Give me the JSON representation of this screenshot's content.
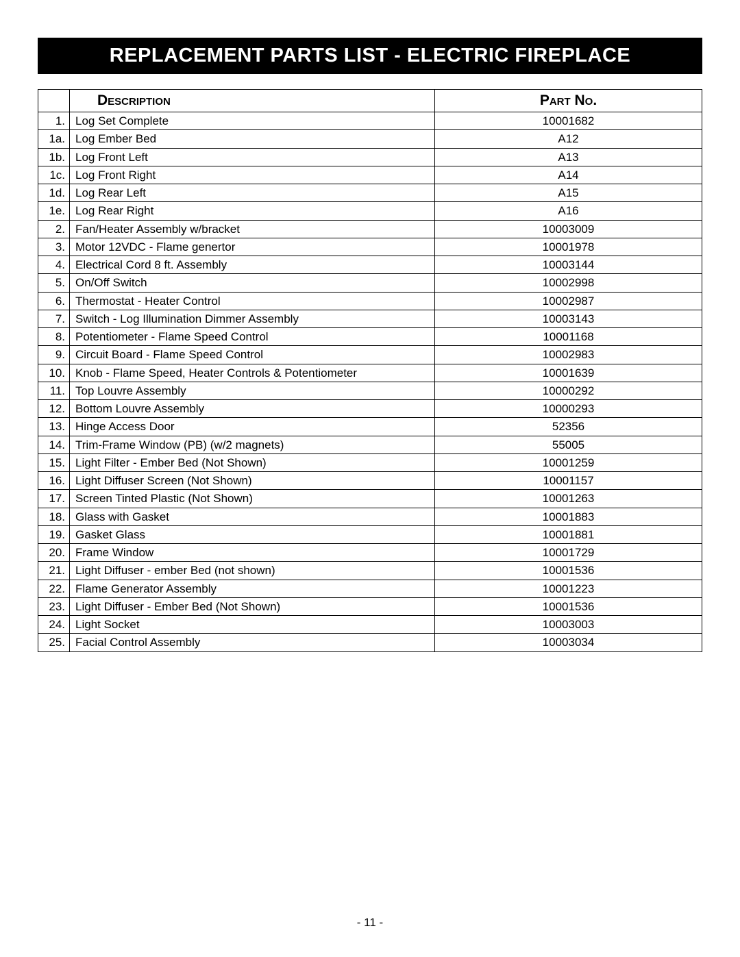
{
  "title": "REPLACEMENT PARTS LIST - ELECTRIC FIREPLACE",
  "headers": {
    "description": "Description",
    "partNo": "Part No."
  },
  "rows": [
    {
      "num": "1.",
      "desc": "Log Set Complete",
      "part": "10001682"
    },
    {
      "num": "1a.",
      "desc": "Log Ember Bed",
      "part": "A12"
    },
    {
      "num": "1b.",
      "desc": "Log Front Left",
      "part": "A13"
    },
    {
      "num": "1c.",
      "desc": "Log Front Right",
      "part": "A14"
    },
    {
      "num": "1d.",
      "desc": "Log Rear Left",
      "part": "A15"
    },
    {
      "num": "1e.",
      "desc": "Log Rear Right",
      "part": "A16"
    },
    {
      "num": "2.",
      "desc": "Fan/Heater Assembly w/bracket",
      "part": "10003009"
    },
    {
      "num": "3.",
      "desc": "Motor 12VDC - Flame genertor",
      "part": "10001978"
    },
    {
      "num": "4.",
      "desc": "Electrical Cord 8 ft. Assembly",
      "part": "10003144"
    },
    {
      "num": "5.",
      "desc": "On/Off Switch",
      "part": "10002998"
    },
    {
      "num": "6.",
      "desc": "Thermostat - Heater Control",
      "part": "10002987"
    },
    {
      "num": "7.",
      "desc": "Switch - Log Illumination Dimmer Assembly",
      "part": "10003143"
    },
    {
      "num": "8.",
      "desc": "Potentiometer - Flame Speed Control",
      "part": "10001168"
    },
    {
      "num": "9.",
      "desc": "Circuit Board - Flame Speed Control",
      "part": "10002983"
    },
    {
      "num": "10.",
      "desc": "Knob - Flame Speed, Heater Controls & Potentiometer",
      "part": "10001639"
    },
    {
      "num": "11.",
      "desc": "Top Louvre Assembly",
      "part": "10000292"
    },
    {
      "num": "12.",
      "desc": "Bottom Louvre Assembly",
      "part": "10000293"
    },
    {
      "num": "13.",
      "desc": "Hinge Access Door",
      "part": "52356"
    },
    {
      "num": "14.",
      "desc": "Trim-Frame Window (PB) (w/2 magnets)",
      "part": "55005"
    },
    {
      "num": "15.",
      "desc": "Light Filter - Ember Bed (Not Shown)",
      "part": "10001259"
    },
    {
      "num": "16.",
      "desc": "Light Diffuser Screen (Not Shown)",
      "part": "10001157"
    },
    {
      "num": "17.",
      "desc": "Screen Tinted Plastic (Not Shown)",
      "part": "10001263"
    },
    {
      "num": "18.",
      "desc": "Glass with Gasket",
      "part": "10001883"
    },
    {
      "num": "19.",
      "desc": "Gasket Glass",
      "part": "10001881"
    },
    {
      "num": "20.",
      "desc": "Frame Window",
      "part": "10001729"
    },
    {
      "num": "21.",
      "desc": "Light Diffuser - ember Bed (not shown)",
      "part": "10001536"
    },
    {
      "num": "22.",
      "desc": "Flame Generator Assembly",
      "part": "10001223"
    },
    {
      "num": "23.",
      "desc": "Light Diffuser - Ember Bed (Not Shown)",
      "part": "10001536"
    },
    {
      "num": "24.",
      "desc": "Light Socket",
      "part": "10003003"
    },
    {
      "num": "25.",
      "desc": "Facial Control Assembly",
      "part": "10003034"
    }
  ],
  "pageNumber": "- 11 -",
  "styling": {
    "title_bg": "#000000",
    "title_color": "#ffffff",
    "title_fontsize": 29,
    "body_fontsize": 17,
    "header_fontsize": 21,
    "border_color": "#000000",
    "background_color": "#ffffff",
    "col_num_width": 46,
    "col_part_width": 390
  }
}
